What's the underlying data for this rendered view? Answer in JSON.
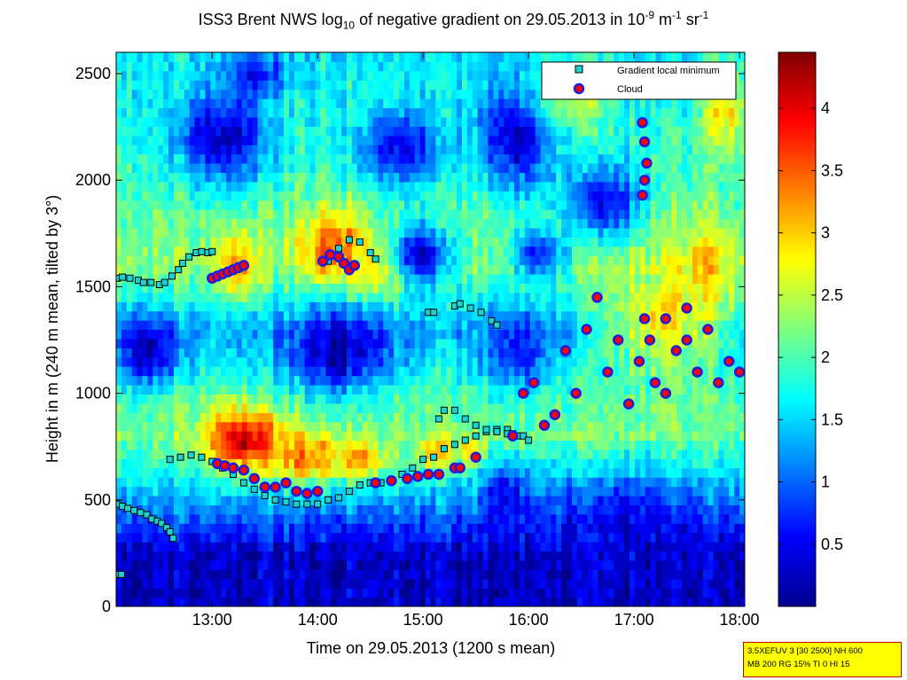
{
  "title": {
    "prefix": "ISS3 Brent NWS log",
    "sub": "10",
    "middle": " of negative gradient on 29.05.2013 in 10",
    "sup1": "-9",
    "mid2": " m",
    "sup2": "-1",
    "mid3": " sr",
    "sup3": "-1"
  },
  "xlabel": "Time on 29.05.2013 (1200 s mean)",
  "ylabel": "Height in m (240 m mean, tilted by 3°)",
  "info_box": {
    "line1": "3.5XEFUV 3 [30 2500] NH 600",
    "line2": "MB 200 RG 15% TI 0 HI 15"
  },
  "legend": {
    "position": "top-right",
    "items": [
      {
        "label": "Gradient local minimum",
        "marker": "square",
        "fill": "#19d3d3",
        "edge": "#000000"
      },
      {
        "label": "Cloud",
        "marker": "circle",
        "fill": "#ff0000",
        "edge": "#1e1ee0"
      }
    ]
  },
  "colors": {
    "heatmap_low": "#00008f",
    "heatmap_mid": "#7fff7f",
    "heatmap_high": "#800000",
    "gradient_min_marker": "#19d3d3",
    "cloud_marker": "#ff0000",
    "cloud_marker_edge": "#1e1ee0",
    "info_box_bg": "#ffff00"
  },
  "chart_data": {
    "type": "heatmap",
    "x_unit": "time of day (hours)",
    "xlim": [
      12.09,
      18.05
    ],
    "ylim": [
      0,
      2600
    ],
    "x_ticks": [
      {
        "value": 13,
        "label": "13:00"
      },
      {
        "value": 14,
        "label": "14:00"
      },
      {
        "value": 15,
        "label": "15:00"
      },
      {
        "value": 16,
        "label": "16:00"
      },
      {
        "value": 17,
        "label": "17:00"
      },
      {
        "value": 18,
        "label": "18:00"
      }
    ],
    "y_ticks": [
      {
        "value": 0,
        "label": "0"
      },
      {
        "value": 500,
        "label": "500"
      },
      {
        "value": 1000,
        "label": "1000"
      },
      {
        "value": 1500,
        "label": "1500"
      },
      {
        "value": 2000,
        "label": "2000"
      },
      {
        "value": 2500,
        "label": "2500"
      }
    ],
    "colorbar": {
      "clim": [
        0,
        4.45
      ],
      "ticks": [
        {
          "value": 0.5,
          "label": "0.5"
        },
        {
          "value": 1,
          "label": "1"
        },
        {
          "value": 1.5,
          "label": "1.5"
        },
        {
          "value": 2,
          "label": "2"
        },
        {
          "value": 2.5,
          "label": "2.5"
        },
        {
          "value": 3,
          "label": "3"
        },
        {
          "value": 3.5,
          "label": "3.5"
        },
        {
          "value": 4,
          "label": "4"
        }
      ]
    },
    "field_base": [
      {
        "y": 0,
        "v": 0.3
      },
      {
        "y": 250,
        "v": 0.3
      },
      {
        "y": 500,
        "v": 1.3
      },
      {
        "y": 800,
        "v": 2.2
      },
      {
        "y": 1000,
        "v": 2.0
      },
      {
        "y": 1300,
        "v": 1.3
      },
      {
        "y": 1600,
        "v": 2.3
      },
      {
        "y": 2000,
        "v": 2.0
      },
      {
        "y": 2600,
        "v": 1.6
      }
    ],
    "blobs": [
      {
        "x": 13.3,
        "y": 780,
        "rx": 0.35,
        "ry": 140,
        "v": 4.2
      },
      {
        "x": 13.9,
        "y": 700,
        "rx": 0.35,
        "ry": 120,
        "v": 3.4
      },
      {
        "x": 14.4,
        "y": 690,
        "rx": 0.25,
        "ry": 90,
        "v": 3.2
      },
      {
        "x": 13.25,
        "y": 1600,
        "rx": 0.18,
        "ry": 150,
        "v": 3.2
      },
      {
        "x": 14.15,
        "y": 1690,
        "rx": 0.3,
        "ry": 170,
        "v": 3.6
      },
      {
        "x": 14.6,
        "y": 1580,
        "rx": 0.3,
        "ry": 120,
        "v": 2.9
      },
      {
        "x": 15.1,
        "y": 720,
        "rx": 0.2,
        "ry": 90,
        "v": 3.0
      },
      {
        "x": 15.45,
        "y": 740,
        "rx": 0.12,
        "ry": 80,
        "v": 3.0
      },
      {
        "x": 12.4,
        "y": 1200,
        "rx": 0.3,
        "ry": 150,
        "v": 0.2
      },
      {
        "x": 14.2,
        "y": 1200,
        "rx": 0.5,
        "ry": 180,
        "v": 0.2
      },
      {
        "x": 13.1,
        "y": 2200,
        "rx": 0.45,
        "ry": 220,
        "v": 0.3
      },
      {
        "x": 14.8,
        "y": 2150,
        "rx": 0.4,
        "ry": 180,
        "v": 0.5
      },
      {
        "x": 15.9,
        "y": 2200,
        "rx": 0.35,
        "ry": 250,
        "v": 0.3
      },
      {
        "x": 16.7,
        "y": 1900,
        "rx": 0.35,
        "ry": 180,
        "v": 0.4
      },
      {
        "x": 13.4,
        "y": 2500,
        "rx": 0.3,
        "ry": 120,
        "v": 0.6
      },
      {
        "x": 15.0,
        "y": 1650,
        "rx": 0.3,
        "ry": 150,
        "v": 0.4
      },
      {
        "x": 16.1,
        "y": 1650,
        "rx": 0.25,
        "ry": 120,
        "v": 0.6
      },
      {
        "x": 15.9,
        "y": 1200,
        "rx": 0.3,
        "ry": 180,
        "v": 0.6
      },
      {
        "x": 15.8,
        "y": 500,
        "rx": 0.2,
        "ry": 150,
        "v": 0.4
      },
      {
        "x": 16.9,
        "y": 350,
        "rx": 0.8,
        "ry": 250,
        "v": 0.4
      },
      {
        "x": 17.3,
        "y": 1350,
        "rx": 0.6,
        "ry": 250,
        "v": 2.8
      },
      {
        "x": 17.7,
        "y": 1600,
        "rx": 0.3,
        "ry": 200,
        "v": 3.0
      },
      {
        "x": 17.85,
        "y": 2350,
        "rx": 0.2,
        "ry": 220,
        "v": 3.0
      },
      {
        "x": 16.4,
        "y": 2400,
        "rx": 0.3,
        "ry": 150,
        "v": 2.6
      }
    ],
    "series": [
      {
        "name": "Gradient local minimum",
        "x": [
          12.1,
          12.15,
          12.22,
          12.3,
          12.35,
          12.42,
          12.5,
          12.55,
          12.62,
          12.68,
          12.72,
          12.78,
          12.85,
          12.9,
          12.96,
          13.0,
          12.1,
          12.15,
          12.2,
          12.26,
          12.32,
          12.38,
          12.43,
          12.48,
          12.52,
          12.57,
          12.6,
          12.63,
          12.1,
          12.14,
          12.6,
          12.7,
          12.8,
          12.9,
          13.0,
          13.1,
          13.2,
          13.3,
          13.4,
          13.5,
          13.6,
          13.7,
          13.8,
          13.9,
          14.0,
          14.1,
          14.2,
          14.3,
          14.4,
          14.5,
          14.6,
          14.7,
          14.8,
          14.9,
          15.0,
          15.1,
          15.2,
          15.3,
          15.4,
          15.5,
          15.6,
          15.7,
          15.8,
          14.1,
          14.2,
          14.3,
          14.4,
          14.5,
          14.55,
          15.05,
          15.1,
          15.3,
          15.35,
          15.45,
          15.55,
          15.65,
          15.7,
          15.15,
          15.2,
          15.3,
          15.4,
          15.5,
          15.6,
          15.7,
          15.8,
          15.85,
          15.9,
          15.95,
          16.0
        ],
        "y": [
          1540,
          1545,
          1540,
          1530,
          1520,
          1520,
          1510,
          1520,
          1550,
          1580,
          1610,
          1640,
          1660,
          1665,
          1660,
          1665,
          480,
          470,
          460,
          450,
          440,
          430,
          410,
          400,
          390,
          370,
          350,
          320,
          150,
          150,
          690,
          700,
          710,
          700,
          680,
          650,
          620,
          580,
          550,
          520,
          500,
          490,
          480,
          480,
          480,
          500,
          510,
          540,
          570,
          580,
          580,
          590,
          620,
          650,
          690,
          700,
          740,
          760,
          780,
          800,
          820,
          830,
          830,
          1620,
          1680,
          1720,
          1710,
          1660,
          1630,
          1380,
          1380,
          1410,
          1420,
          1400,
          1380,
          1340,
          1320,
          880,
          920,
          920,
          880,
          850,
          830,
          820,
          810,
          810,
          800,
          800,
          780
        ]
      },
      {
        "name": "Cloud",
        "x": [
          13.0,
          13.05,
          13.1,
          13.15,
          13.2,
          13.25,
          13.3,
          13.05,
          13.12,
          13.2,
          13.3,
          13.4,
          13.5,
          13.6,
          13.7,
          13.8,
          13.9,
          14.0,
          14.05,
          14.12,
          14.2,
          14.25,
          14.3,
          14.35,
          14.55,
          14.7,
          14.85,
          14.95,
          15.05,
          15.15,
          15.3,
          15.35,
          15.5,
          15.85,
          15.95,
          16.05,
          16.15,
          16.25,
          16.35,
          16.45,
          16.55,
          16.65,
          16.75,
          16.85,
          16.95,
          17.05,
          17.1,
          17.15,
          17.2,
          17.3,
          17.4,
          17.5,
          17.6,
          17.7,
          17.8,
          17.9,
          18.0,
          17.08,
          17.1,
          17.12,
          17.1,
          17.08,
          17.3,
          17.5
        ],
        "y": [
          1540,
          1550,
          1560,
          1570,
          1580,
          1590,
          1600,
          670,
          660,
          650,
          640,
          600,
          560,
          560,
          580,
          540,
          530,
          540,
          1620,
          1650,
          1640,
          1610,
          1580,
          1600,
          580,
          590,
          600,
          610,
          620,
          620,
          650,
          650,
          700,
          800,
          1000,
          1050,
          850,
          900,
          1200,
          1000,
          1300,
          1450,
          1100,
          1250,
          950,
          1150,
          1350,
          1250,
          1050,
          1000,
          1200,
          1400,
          1100,
          1300,
          1050,
          1150,
          1100,
          2270,
          2180,
          2080,
          2000,
          1930,
          1350,
          1250
        ]
      }
    ]
  }
}
